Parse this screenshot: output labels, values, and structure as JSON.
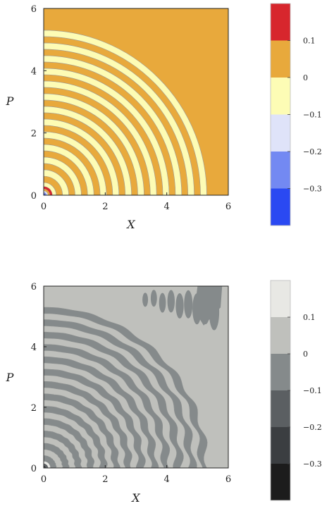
{
  "chart_data": [
    {
      "type": "heatmap",
      "subtype": "filled-contour",
      "colormap": "diverging blue-white-red",
      "xlabel": "X",
      "ylabel": "P",
      "xlim": [
        0,
        6
      ],
      "ylim": [
        0,
        6
      ],
      "xticks": [
        "0",
        "2",
        "4",
        "6"
      ],
      "yticks": [
        "0",
        "2",
        "4",
        "6"
      ],
      "field": {
        "description_shape": "concentric quarter-rings about origin",
        "outer_radius": 5.3,
        "ring_count": 13,
        "band_values": [
          "0 to 0.1",
          "-0.1 to 0"
        ],
        "core_values": [
          "0.1 to 0.2",
          "-0.2 to -0.1",
          "-0.3 to -0.2"
        ]
      },
      "colorbar": {
        "ticks": [
          "0.1",
          "0",
          "−0.1",
          "−0.2",
          "−0.3"
        ],
        "levels": [
          0.2,
          0.1,
          0,
          -0.1,
          -0.2,
          -0.3,
          -0.4
        ],
        "colors": [
          "#d7262d",
          "#e8a93c",
          "#fdfcb5",
          "#dfe3f9",
          "#7389f2",
          "#2a49f2"
        ]
      }
    },
    {
      "type": "heatmap",
      "subtype": "filled-contour",
      "colormap": "grayscale",
      "xlabel": "X",
      "ylabel": "P",
      "xlim": [
        0,
        6
      ],
      "ylim": [
        0,
        6
      ],
      "xticks": [
        "0",
        "2",
        "4",
        "6"
      ],
      "yticks": [
        "0",
        "2",
        "4",
        "6"
      ],
      "field": {
        "description_shape": "wavy concentric quarter-rings about origin with noisy upper-right band",
        "outer_radius": 5.3,
        "ring_count": 13,
        "band_values": [
          "0 to 0.1",
          "-0.1 to 0"
        ]
      },
      "colorbar": {
        "ticks": [
          "0.1",
          "0",
          "−0.1",
          "−0.2",
          "−0.3"
        ],
        "levels": [
          0.2,
          0.1,
          0,
          -0.1,
          -0.2,
          -0.3,
          -0.4
        ],
        "colors": [
          "#e8e8e4",
          "#bfc0bc",
          "#858a8b",
          "#5b5f62",
          "#3b3e41",
          "#1c1c1c"
        ]
      }
    }
  ]
}
